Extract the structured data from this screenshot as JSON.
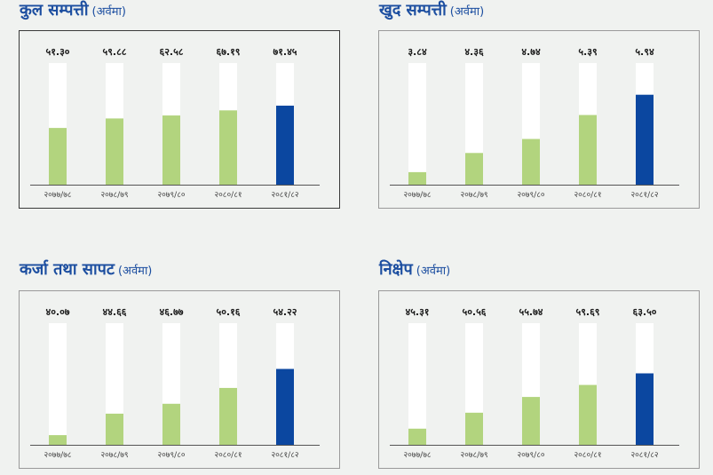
{
  "colors": {
    "bar_past": "#b2d47e",
    "bar_current": "#0b47a0",
    "track": "#ffffff",
    "heading": "#1c4ea0"
  },
  "chart_data": [
    {
      "type": "bar",
      "title": "कुल सम्पत्ती",
      "unit": "(अर्वमा)",
      "categories": [
        "२०७७/७८",
        "२०७८/७९",
        "२०७९/८०",
        "२०८०/८१",
        "२०८१/८२"
      ],
      "values": [
        51.3,
        59.88,
        62.58,
        67.19,
        71.45
      ],
      "value_labels": [
        "५१.३०",
        "५९.८८",
        "६२.५८",
        "६७.१९",
        "७१.४५"
      ],
      "ylim": [
        0,
        110
      ],
      "highlight_index": 4
    },
    {
      "type": "bar",
      "title": "खुद सम्पत्ती",
      "unit": "(अर्वमा)",
      "categories": [
        "२०७७/७८",
        "२०७८/७९",
        "२०७९/८०",
        "२०८०/८१",
        "२०८१/८२"
      ],
      "values": [
        3.84,
        4.36,
        4.74,
        5.39,
        5.94
      ],
      "value_labels": [
        "३.८४",
        "४.३६",
        "४.७४",
        "५.३९",
        "५.९४"
      ],
      "ylim": [
        3.5,
        6.8
      ],
      "highlight_index": 4
    },
    {
      "type": "bar",
      "title": "कर्जा तथा सापट",
      "unit": "(अर्वमा)",
      "categories": [
        "२०७७/७८",
        "२०७८/७९",
        "२०७९/८०",
        "२०८०/८१",
        "२०८१/८२"
      ],
      "values": [
        40.07,
        44.66,
        46.77,
        50.16,
        54.22
      ],
      "value_labels": [
        "४०.०७",
        "४४.६६",
        "४६.७७",
        "५०.१६",
        "५४.२२"
      ],
      "ylim": [
        38,
        64
      ],
      "highlight_index": 4
    },
    {
      "type": "bar",
      "title": "निक्षेप",
      "unit": "(अर्वमा)",
      "categories": [
        "२०७७/७८",
        "२०७८/७९",
        "२०७९/८०",
        "२०८०/८१",
        "२०८१/८२"
      ],
      "values": [
        45.31,
        50.56,
        55.74,
        59.69,
        63.5
      ],
      "value_labels": [
        "४५.३१",
        "५०.५६",
        "५५.७४",
        "५९.६९",
        "६३.५०"
      ],
      "ylim": [
        40,
        80
      ],
      "highlight_index": 4
    }
  ]
}
